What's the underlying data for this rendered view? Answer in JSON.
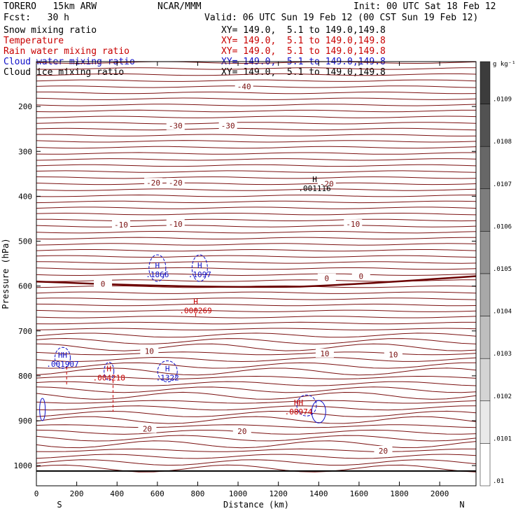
{
  "header": {
    "model": "TORERO   15km ARW",
    "center": "NCAR/MMM",
    "init": "Init: 00 UTC Sat 18 Feb 12",
    "fcst": "Fcst:   30 h",
    "valid": "Valid: 06 UTC Sun 19 Feb 12 (00 CST Sun 19 Feb 12)"
  },
  "fields": [
    {
      "label": "Snow mixing ratio",
      "xy": "XY= 149.0,  5.1 to 149.0,149.8",
      "color": "#000000"
    },
    {
      "label": "Temperature",
      "xy": "XY= 149.0,  5.1 to 149.0,149.8",
      "color": "#c80000"
    },
    {
      "label": "Rain water mixing ratio",
      "xy": "XY= 149.0,  5.1 to 149.0,149.8",
      "color": "#c80000"
    },
    {
      "label": "Cloud water mixing ratio",
      "xy": "XY= 149.0,  5.1 to 149.0,149.8",
      "color": "#1010c8"
    },
    {
      "label": "Cloud ice mixing ratio",
      "xy": "XY= 149.0,  5.1 to 149.0,149.8",
      "color": "#000000"
    }
  ],
  "chart_data": {
    "type": "contour",
    "xlabel": "Distance (km)",
    "ylabel": "Pressure (hPa)",
    "xlim": [
      0,
      2180
    ],
    "ylim": [
      1045,
      100
    ],
    "x_ticks": [
      "0",
      "200",
      "400",
      "600",
      "800",
      "1000",
      "1200",
      "1400",
      "1600",
      "1800",
      "2000"
    ],
    "y_ticks": [
      "200",
      "300",
      "400",
      "500",
      "600",
      "700",
      "800",
      "900",
      "1000"
    ],
    "x_end_labels": {
      "left": "S",
      "right": "N"
    },
    "temperature_contours": [
      {
        "label": "-40",
        "x": 1030,
        "p": 155
      },
      {
        "label": "-30",
        "x": 690,
        "p": 243
      },
      {
        "label": "-30",
        "x": 950,
        "p": 243
      },
      {
        "label": "-20",
        "x": 580,
        "p": 370
      },
      {
        "label": "-20",
        "x": 690,
        "p": 370
      },
      {
        "label": "-20",
        "x": 1440,
        "p": 372
      },
      {
        "label": "-10",
        "x": 420,
        "p": 463
      },
      {
        "label": "-10",
        "x": 690,
        "p": 462
      },
      {
        "label": "-10",
        "x": 1570,
        "p": 462
      },
      {
        "label": "0",
        "x": 330,
        "p": 595
      },
      {
        "label": "0",
        "x": 1440,
        "p": 583
      },
      {
        "label": "0",
        "x": 1610,
        "p": 578
      },
      {
        "label": "10",
        "x": 560,
        "p": 745
      },
      {
        "label": "10",
        "x": 1430,
        "p": 750
      },
      {
        "label": "10",
        "x": 1770,
        "p": 753
      },
      {
        "label": "20",
        "x": 550,
        "p": 918
      },
      {
        "label": "20",
        "x": 1020,
        "p": 923
      },
      {
        "label": "20",
        "x": 1720,
        "p": 967
      }
    ],
    "maxima": [
      {
        "mark": "H",
        "value": ".001116",
        "x": 1380,
        "p": 368,
        "color": "#000000"
      },
      {
        "mark": "H",
        "value": ".1866",
        "x": 600,
        "p": 560,
        "color": "#1010c8"
      },
      {
        "mark": "H",
        "value": ".1097",
        "x": 810,
        "p": 560,
        "color": "#1010c8"
      },
      {
        "mark": "H",
        "value": ".000269",
        "x": 790,
        "p": 640,
        "color": "#c80000"
      },
      {
        "mark": "HH",
        "value": ".001907",
        "x": 130,
        "p": 760,
        "color": "#1010c8"
      },
      {
        "mark": "H",
        "value": ".004218",
        "x": 360,
        "p": 790,
        "color": "#c80000"
      },
      {
        "mark": "H",
        "value": ".1322",
        "x": 650,
        "p": 790,
        "color": "#1010c8"
      },
      {
        "mark": "HH",
        "value": ".08974",
        "x": 1300,
        "p": 866,
        "color": "#c80000"
      }
    ],
    "colorbar": {
      "unit": "g kg⁻¹",
      "labels": [
        ".0109",
        ".0108",
        ".0107",
        ".0106",
        ".0105",
        ".0104",
        ".0103",
        ".0102",
        ".0101",
        ".01"
      ]
    }
  }
}
